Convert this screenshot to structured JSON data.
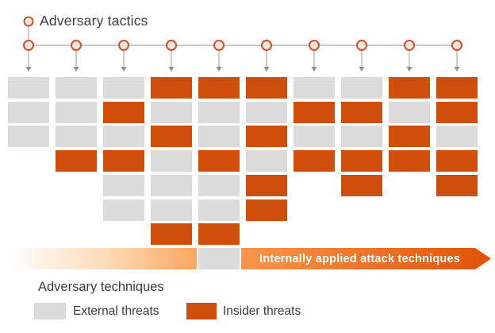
{
  "title": "Adversary tactics",
  "tactics": {
    "count": 10
  },
  "techniques_grid": {
    "columns": [
      [
        "external",
        "external",
        "external"
      ],
      [
        "external",
        "external",
        "external",
        "insider"
      ],
      [
        "external",
        "insider",
        "external",
        "insider",
        "external",
        "external"
      ],
      [
        "insider",
        "external",
        "insider",
        "external",
        "external",
        "external",
        "insider"
      ],
      [
        "insider",
        "external",
        "external",
        "insider",
        "external",
        "external",
        "insider",
        "external"
      ],
      [
        "insider",
        "external",
        "insider",
        "external",
        "insider",
        "insider"
      ],
      [
        "external",
        "insider",
        "external",
        "insider"
      ],
      [
        "external",
        "insider",
        "external",
        "insider",
        "insider"
      ],
      [
        "insider",
        "external",
        "insider",
        "insider"
      ],
      [
        "insider",
        "insider",
        "external",
        "insider",
        "insider"
      ]
    ]
  },
  "arrow_banner": {
    "label": "Internally applied attack techniques"
  },
  "legend": {
    "title": "Adversary techniques",
    "items": [
      {
        "id": "external",
        "label": "External threats",
        "color": "#DBDBDB"
      },
      {
        "id": "insider",
        "label": "Insider threats",
        "color": "#D04E0B"
      }
    ]
  },
  "colors": {
    "external": "#DBDBDB",
    "insider": "#D04E0B",
    "banner_gradient_start": "#FFFFFF",
    "banner_gradient_mid": "#F9A65F",
    "banner_gradient_end": "#E05207",
    "connector_line": "#ABABAB",
    "arrowhead": "#8F8F8F",
    "node_ring": "#CC512D",
    "node_fill": "#EFE6E0",
    "text": "#3C3C3C"
  }
}
